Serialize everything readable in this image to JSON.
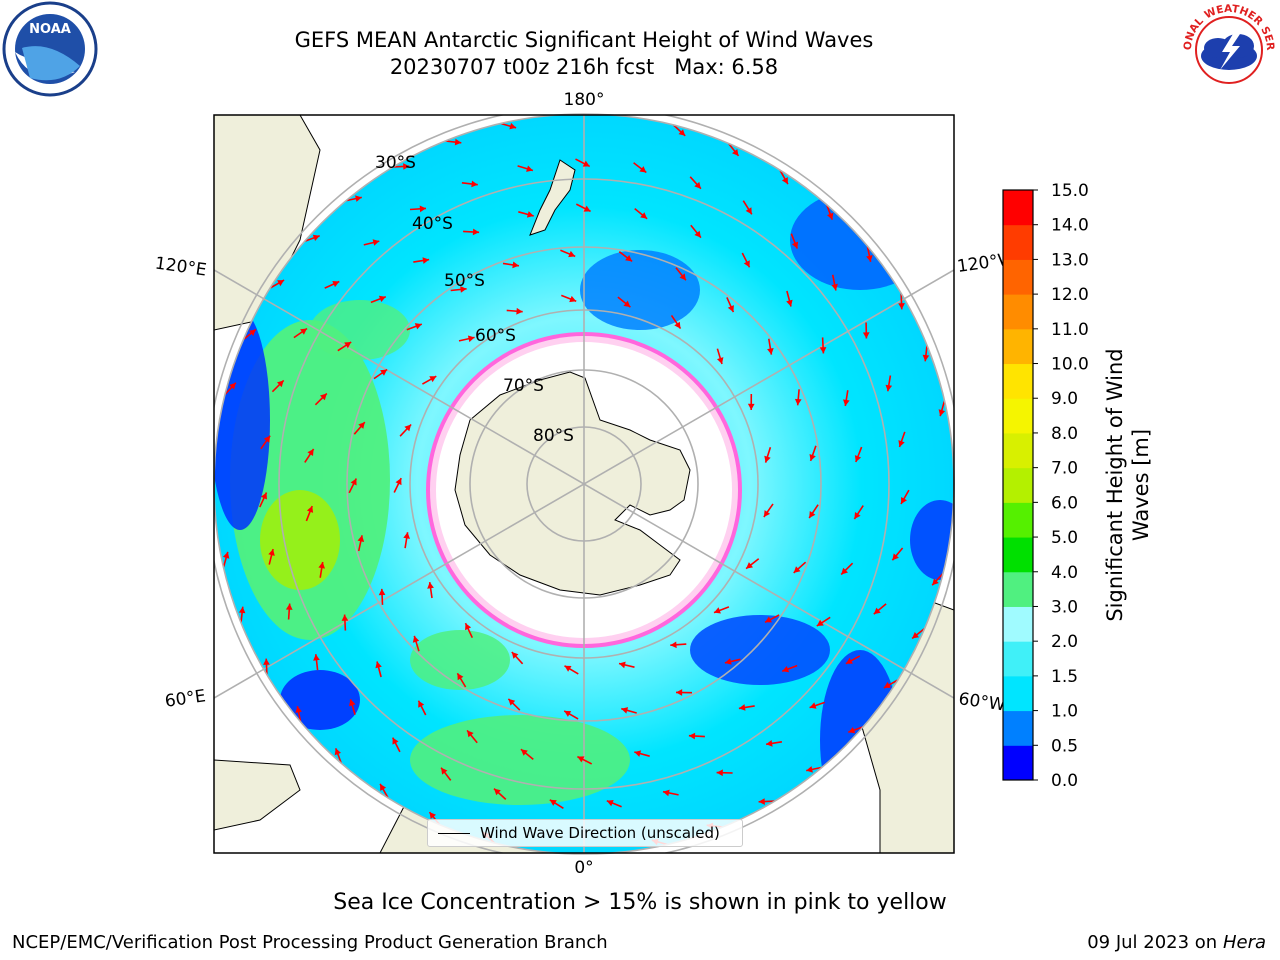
{
  "title": {
    "line1": "GEFS MEAN Antarctic Significant Height of Wind Waves",
    "line2": "20230707 t00z 216h fcst   Max: 6.58"
  },
  "map": {
    "projection": "south-polar-stereographic",
    "parallels": [
      "30°S",
      "40°S",
      "50°S",
      "60°S",
      "70°S",
      "80°S"
    ],
    "meridians": {
      "top": "180°",
      "bottom": "0°",
      "upper_left": "120°E",
      "lower_left": "60°E",
      "upper_right": "120°W",
      "lower_right": "60°W"
    },
    "legend_entry": "Wind Wave Direction (unscaled)",
    "arrow_color": "#ff0000",
    "land_color": "#efefdb",
    "sea_ice_note_color": "#ff33cc"
  },
  "colorbar": {
    "label": "Significant Height of Wind Waves [m]",
    "ticks": [
      "0.0",
      "0.5",
      "1.0",
      "1.5",
      "2.0",
      "3.0",
      "4.0",
      "5.0",
      "6.0",
      "7.0",
      "8.0",
      "9.0",
      "10.0",
      "11.0",
      "12.0",
      "13.0",
      "14.0",
      "15.0"
    ],
    "colors": [
      "#0000ff",
      "#0080ff",
      "#00e5ff",
      "#40f0f8",
      "#a0fbff",
      "#50f080",
      "#00e000",
      "#55f000",
      "#b4f000",
      "#d8f000",
      "#f5f500",
      "#ffe400",
      "#ffb400",
      "#ff8c00",
      "#ff6400",
      "#ff3c00",
      "#ff0000"
    ]
  },
  "caption": "Sea Ice Concentration > 15% is shown in pink to yellow",
  "footer": {
    "left": "NCEP/EMC/Verification Post Processing Product Generation Branch",
    "right_date": "09 Jul 2023 on ",
    "right_host": "Hera"
  },
  "logos": {
    "left": "NOAA",
    "right": "NATIONAL WEATHER SERVICE"
  }
}
